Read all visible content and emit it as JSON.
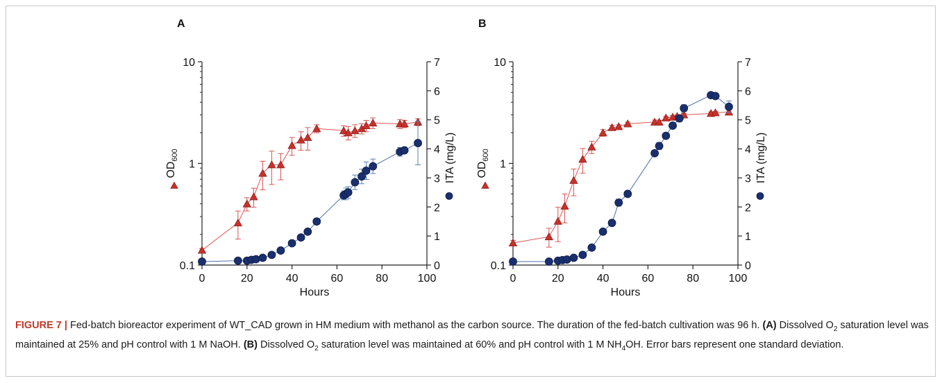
{
  "chart_data": [
    {
      "type": "scatter",
      "panel_label": "A",
      "xlabel": "Hours",
      "xlim": [
        0,
        100
      ],
      "x_ticks": [
        "0",
        "20",
        "40",
        "60",
        "80",
        "100"
      ],
      "y_left": {
        "label": "OD",
        "label_sub": "600",
        "scale": "log",
        "lim": [
          0.1,
          10
        ],
        "ticks": [
          "0.1",
          "1",
          "10"
        ],
        "legend_symbol": "red-triangle"
      },
      "y_right": {
        "label": "ITA (mg/L)",
        "scale": "linear",
        "lim": [
          0,
          7
        ],
        "ticks": [
          "0",
          "1",
          "2",
          "3",
          "4",
          "5",
          "6",
          "7"
        ],
        "legend_symbol": "blue-circle"
      },
      "series": [
        {
          "axis": "left",
          "marker": "triangle",
          "color": "#c8312b",
          "x": [
            0,
            16,
            20,
            23,
            27,
            31,
            35,
            40,
            44,
            47,
            51,
            63,
            65,
            68,
            71,
            73,
            76,
            88,
            90,
            96
          ],
          "y": [
            0.14,
            0.26,
            0.4,
            0.47,
            0.8,
            0.97,
            0.97,
            1.5,
            1.7,
            1.8,
            2.2,
            2.1,
            2.0,
            2.1,
            2.2,
            2.35,
            2.5,
            2.45,
            2.45,
            2.55
          ],
          "err": [
            0.005,
            0.08,
            0.06,
            0.1,
            0.25,
            0.35,
            0.28,
            0.3,
            0.35,
            0.45,
            0.2,
            0.25,
            0.3,
            0.3,
            0.25,
            0.3,
            0.3,
            0.25,
            0.2,
            0.2
          ]
        },
        {
          "axis": "right",
          "marker": "circle",
          "color": "#1a2f6e",
          "x": [
            0,
            16,
            20,
            22,
            24,
            27,
            31,
            35,
            40,
            44,
            47,
            51,
            63,
            64,
            65,
            68,
            71,
            73,
            76,
            88,
            90,
            96
          ],
          "y": [
            0.12,
            0.15,
            0.15,
            0.18,
            0.2,
            0.25,
            0.35,
            0.5,
            0.75,
            0.95,
            1.15,
            1.5,
            2.4,
            2.45,
            2.5,
            2.85,
            3.05,
            3.25,
            3.4,
            3.9,
            3.95,
            4.2
          ],
          "err": [
            0.02,
            0.02,
            0.02,
            0.02,
            0.03,
            0.03,
            0.04,
            0.04,
            0.05,
            0.06,
            0.06,
            0.1,
            0.15,
            0.2,
            0.2,
            0.25,
            0.25,
            0.3,
            0.25,
            0.15,
            0.1,
            0.75
          ]
        }
      ]
    },
    {
      "type": "scatter",
      "panel_label": "B",
      "xlabel": "Hours",
      "xlim": [
        0,
        100
      ],
      "x_ticks": [
        "0",
        "20",
        "40",
        "60",
        "80",
        "100"
      ],
      "y_left": {
        "label": "OD",
        "label_sub": "600",
        "scale": "log",
        "lim": [
          0.1,
          10
        ],
        "ticks": [
          "0.1",
          "1",
          "10"
        ],
        "legend_symbol": "red-triangle"
      },
      "y_right": {
        "label": "ITA (mg/L)",
        "scale": "linear",
        "lim": [
          0,
          7
        ],
        "ticks": [
          "0",
          "1",
          "2",
          "3",
          "4",
          "5",
          "6",
          "7"
        ],
        "legend_symbol": "blue-circle"
      },
      "series": [
        {
          "axis": "left",
          "marker": "triangle",
          "color": "#c8312b",
          "x": [
            0,
            16,
            20,
            23,
            27,
            31,
            35,
            40,
            44,
            47,
            51,
            63,
            65,
            68,
            71,
            73,
            76,
            88,
            90,
            96
          ],
          "y": [
            0.165,
            0.19,
            0.27,
            0.38,
            0.68,
            1.1,
            1.45,
            2.0,
            2.25,
            2.3,
            2.45,
            2.55,
            2.55,
            2.8,
            2.85,
            2.9,
            3.0,
            3.1,
            3.15,
            3.2
          ],
          "err": [
            0.01,
            0.04,
            0.1,
            0.12,
            0.2,
            0.3,
            0.2,
            0.15,
            0.12,
            0.1,
            0.1,
            0.12,
            0.1,
            0.1,
            0.1,
            0.1,
            0.1,
            0.1,
            0.1,
            0.15
          ]
        },
        {
          "axis": "right",
          "marker": "circle",
          "color": "#1a2f6e",
          "x": [
            0,
            16,
            20,
            22,
            24,
            27,
            31,
            35,
            40,
            44,
            47,
            51,
            63,
            65,
            68,
            71,
            74,
            76,
            88,
            90,
            96
          ],
          "y": [
            0.12,
            0.12,
            0.15,
            0.17,
            0.19,
            0.25,
            0.35,
            0.6,
            1.15,
            1.45,
            2.15,
            2.45,
            3.85,
            4.1,
            4.45,
            4.8,
            5.05,
            5.4,
            5.85,
            5.82,
            5.45
          ],
          "err": [
            0.02,
            0.02,
            0.02,
            0.02,
            0.02,
            0.03,
            0.04,
            0.05,
            0.08,
            0.1,
            0.12,
            0.1,
            0.08,
            0.12,
            0.1,
            0.1,
            0.12,
            0.12,
            0.05,
            0.05,
            0.2
          ]
        }
      ]
    }
  ],
  "caption": {
    "figure_label": "FIGURE 7 |",
    "text1": " Fed-batch bioreactor experiment of WT_CAD grown in HM medium with methanol as the carbon source. The duration of the fed-batch cultivation was 96 h. ",
    "label_a": "(A)",
    "text2": " Dissolved O",
    "sub_a": "2",
    "text3": " saturation level was maintained at 25% and pH control with 1 M NaOH. ",
    "label_b": "(B)",
    "text4": " Dissolved O",
    "sub_b": "2",
    "text5": " saturation level was maintained at 60% and pH control with 1 M NH",
    "sub_c": "4",
    "text6": "OH. Error bars represent one standard deviation."
  }
}
